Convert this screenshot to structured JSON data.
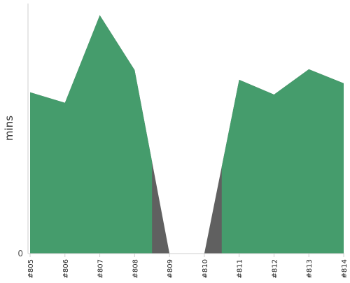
{
  "chart_data": {
    "type": "area",
    "title": "",
    "xlabel": "",
    "ylabel": "mins",
    "categories": [
      "#805",
      "#806",
      "#807",
      "#808",
      "#809",
      "#810",
      "#811",
      "#812",
      "#813",
      "#814"
    ],
    "y_tick_labels": [
      "0"
    ],
    "ylim": [
      0,
      100
    ],
    "grid": false,
    "legend": "none",
    "series": [
      {
        "color": "#459c6c",
        "values": [
          64.5,
          60.3,
          95.3,
          73.4,
          0,
          0,
          69.5,
          63.6,
          73.7,
          68.1
        ]
      }
    ],
    "gap_fill_color": "#606060"
  }
}
